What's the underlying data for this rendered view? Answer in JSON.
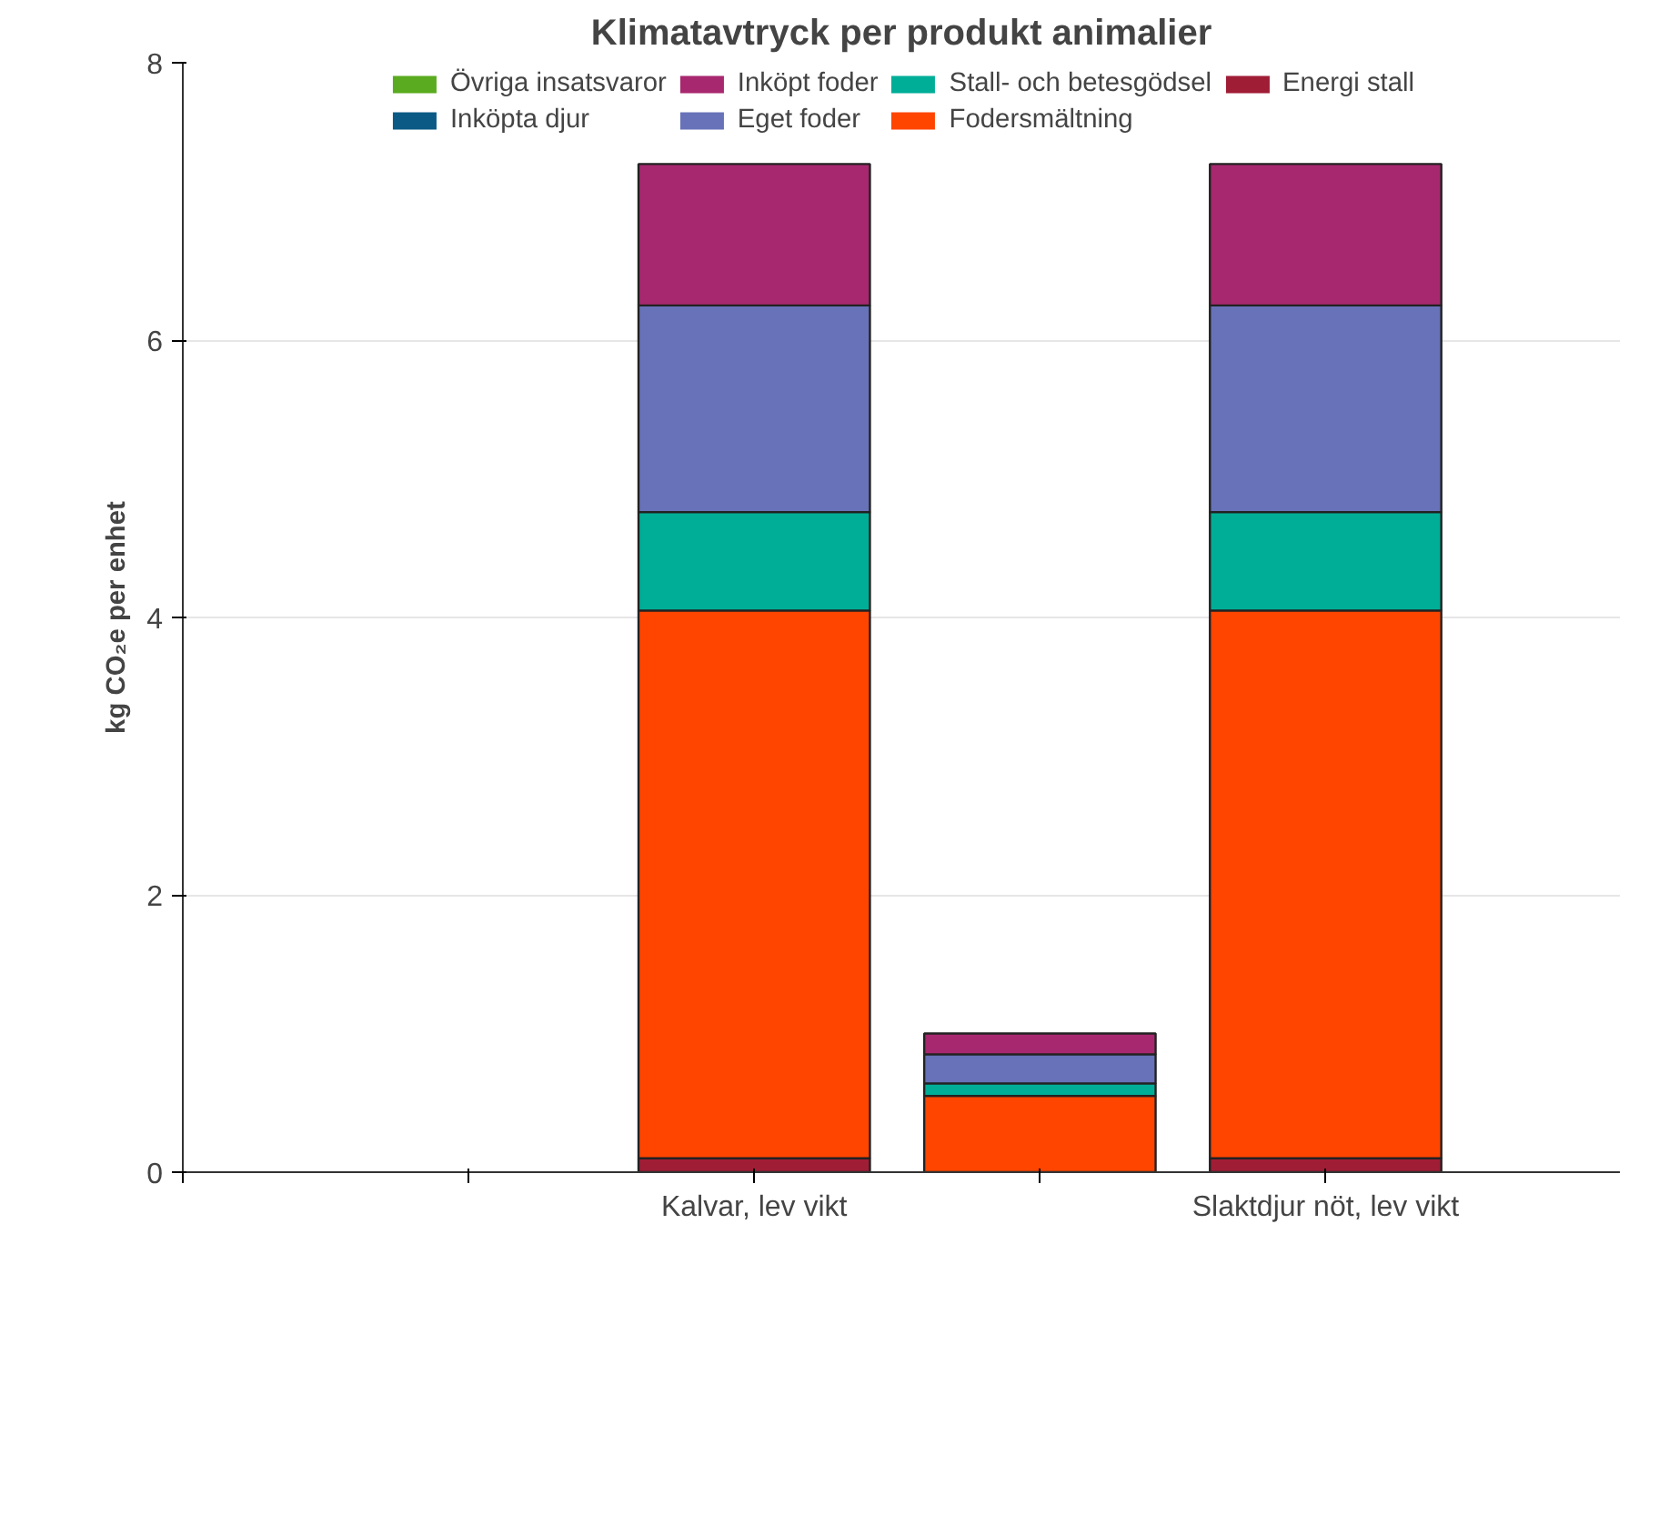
{
  "chart_data": {
    "type": "bar",
    "title": "Klimatavtryck per produkt animalier",
    "ylabel": "kg CO₂e per enhet",
    "categories": [
      null,
      "Kalvar, lev vikt",
      null,
      "Slaktdjur nöt, lev vikt"
    ],
    "stacked": true,
    "series": [
      {
        "name": "Energi stall",
        "color": "#a01d36",
        "values": [
          0,
          0.1,
          0,
          0.1
        ]
      },
      {
        "name": "Fodersmältning",
        "color": "#ff4500",
        "values": [
          0,
          3.95,
          0.55,
          3.95
        ]
      },
      {
        "name": "Stall- och betesgödsel",
        "color": "#00ae97",
        "values": [
          0,
          0.71,
          0.09,
          0.71
        ]
      },
      {
        "name": "Eget foder",
        "color": "#6772b8",
        "values": [
          0,
          1.49,
          0.21,
          1.49
        ]
      },
      {
        "name": "Inköpt foder",
        "color": "#a8286f",
        "values": [
          0,
          1.02,
          0.15,
          1.02
        ]
      },
      {
        "name": "Inköpta djur",
        "color": "#0b5a85",
        "values": [
          0,
          0,
          0,
          0
        ]
      },
      {
        "name": "Övriga insatsvaror",
        "color": "#5aab1f",
        "values": [
          0,
          0,
          0,
          0
        ]
      }
    ],
    "ylim": [
      0,
      8
    ],
    "yticks": [
      0,
      2,
      4,
      6,
      8
    ],
    "grid": "y",
    "legend": "top"
  }
}
